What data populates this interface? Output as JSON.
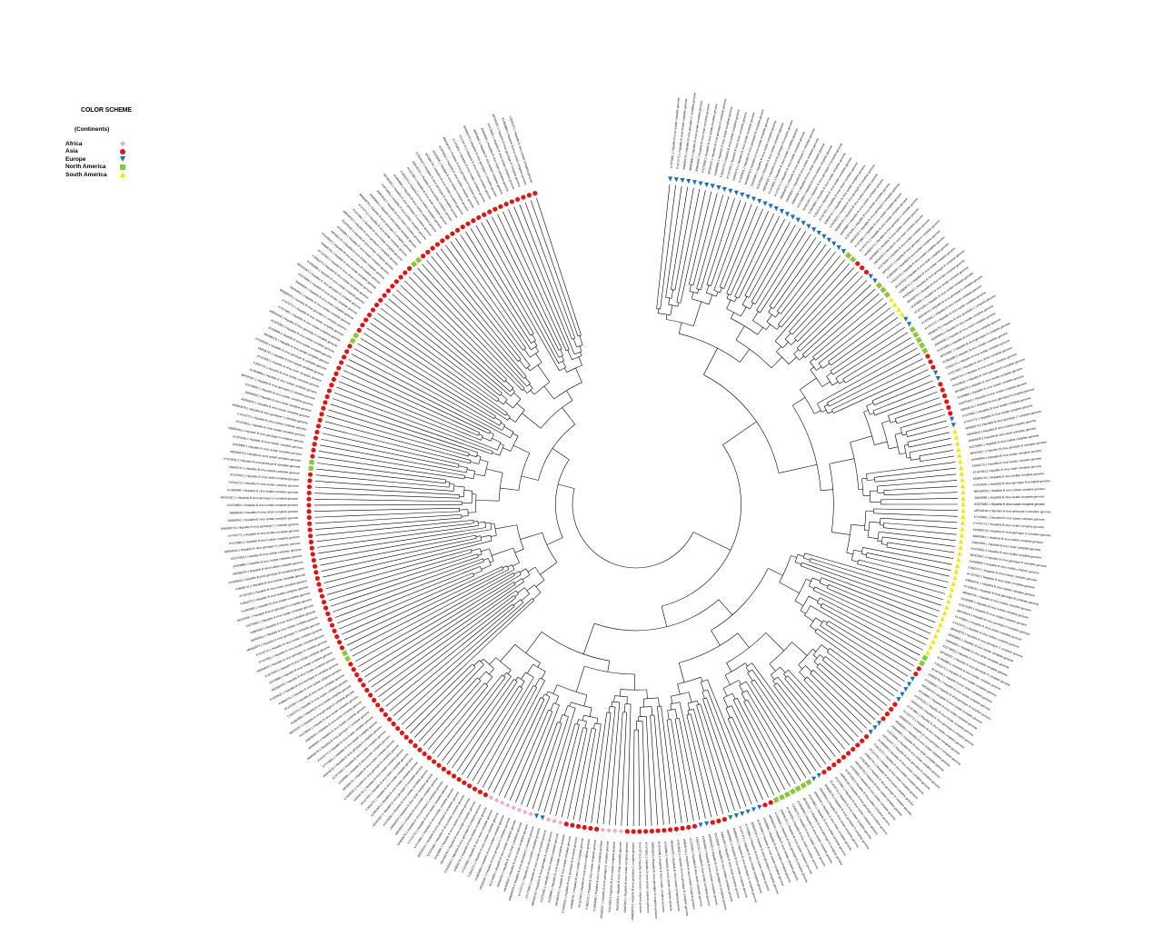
{
  "legend": {
    "title": "COLOR SCHEME",
    "subtitle": "(Continents)",
    "items": [
      {
        "label": "Africa",
        "color": "#f4a6c8",
        "shape": "diamond"
      },
      {
        "label": "Asia",
        "color": "#dd1515",
        "shape": "circle"
      },
      {
        "label": "Europe",
        "color": "#1f6fb8",
        "shape": "triangle-down"
      },
      {
        "label": "North America",
        "color": "#8cc63f",
        "shape": "square"
      },
      {
        "label": "South America",
        "color": "#f2e600",
        "shape": "triangle-up"
      }
    ]
  },
  "tree": {
    "layout": "circular",
    "leaf_label_color": "#000000",
    "branch_color": "#000000",
    "bootstrap_color": "#2e8b2e",
    "sample_labels": [
      "KY470861.1 Hepatitis B virus isolate complete genome",
      "KY470772.1 Hepatitis B virus isolate complete genome",
      "MN683579.1 Hepatitis B virus genotype C complete genome",
      "AB493842.1 Hepatitis B virus isolate complete genome",
      "JN664939.1 Hepatitis B virus strain complete genome",
      "KX276850.1 Hepatitis B virus isolate complete genome",
      "MF925357.1 Hepatitis B virus genotype D complete genome",
      "KU963889.1 Hepatitis B virus isolate complete genome",
      "FJ562270.1 Hepatitis B virus isolate complete genome",
      "AY167093.1 Hepatitis B virus strain complete genome",
      "KM606741.1 Hepatitis B virus isolate complete genome",
      "KY629632.1 Hepatitis B virus genotype B complete genome",
      "MK568478.1 Hepatitis B virus isolate complete genome",
      "JX429886.1 Hepatitis B virus isolate complete genome",
      "KC875260.1 Hepatitis B virus isolate complete genome",
      "AB554018.1 Hepatitis B virus genotype A complete genome"
    ],
    "continent_sequence": [
      {
        "continent": "Europe",
        "count": 32
      },
      {
        "continent": "North America",
        "count": 2
      },
      {
        "continent": "Asia",
        "count": 3
      },
      {
        "continent": "Europe",
        "count": 2
      },
      {
        "continent": "North America",
        "count": 3
      },
      {
        "continent": "South America",
        "count": 4
      },
      {
        "continent": "Europe",
        "count": 2
      },
      {
        "continent": "North America",
        "count": 5
      },
      {
        "continent": "Asia",
        "count": 3
      },
      {
        "continent": "Europe",
        "count": 2
      },
      {
        "continent": "Asia",
        "count": 6
      },
      {
        "continent": "Europe",
        "count": 2
      },
      {
        "continent": "South America",
        "count": 38
      },
      {
        "continent": "North America",
        "count": 2
      },
      {
        "continent": "Asia",
        "count": 2
      },
      {
        "continent": "Europe",
        "count": 5
      },
      {
        "continent": "Asia",
        "count": 4
      },
      {
        "continent": "Europe",
        "count": 3
      },
      {
        "continent": "Asia",
        "count": 10
      },
      {
        "continent": "Europe",
        "count": 2
      },
      {
        "continent": "North America",
        "count": 7
      },
      {
        "continent": "Asia",
        "count": 2
      },
      {
        "continent": "Europe",
        "count": 6
      },
      {
        "continent": "Asia",
        "count": 3
      },
      {
        "continent": "Europe",
        "count": 2
      },
      {
        "continent": "Asia",
        "count": 12
      },
      {
        "continent": "Africa",
        "count": 4
      },
      {
        "continent": "Asia",
        "count": 6
      },
      {
        "continent": "Africa",
        "count": 3
      },
      {
        "continent": "Europe",
        "count": 2
      },
      {
        "continent": "Africa",
        "count": 8
      },
      {
        "continent": "Asia",
        "count": 32
      },
      {
        "continent": "North America",
        "count": 2
      },
      {
        "continent": "Asia",
        "count": 30
      },
      {
        "continent": "North America",
        "count": 2
      },
      {
        "continent": "Asia",
        "count": 20
      },
      {
        "continent": "North America",
        "count": 2
      },
      {
        "continent": "Asia",
        "count": 14
      },
      {
        "continent": "North America",
        "count": 2
      },
      {
        "continent": "Asia",
        "count": 22
      }
    ]
  }
}
